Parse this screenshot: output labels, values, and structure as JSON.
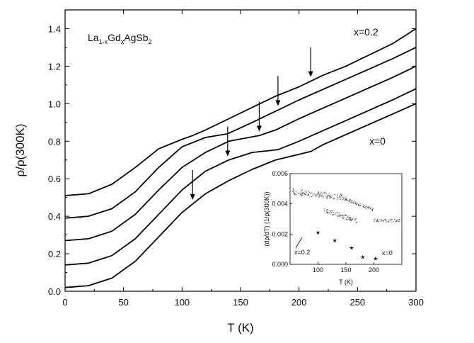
{
  "chart_data": {
    "type": "line",
    "title": "",
    "xlabel": "T (K)",
    "ylabel": "ρ/ρ(300K)",
    "xlim": [
      0,
      300
    ],
    "ylim": [
      0,
      1.5
    ],
    "xticks": [
      "0",
      "50",
      "100",
      "150",
      "200",
      "250",
      "300"
    ],
    "yticks": [
      "0.0",
      "0.2",
      "0.4",
      "0.6",
      "0.8",
      "1.0",
      "1.2",
      "1.4"
    ],
    "compound": {
      "p1": "La",
      "s1": "1-x",
      "p2": "Gd",
      "s2": "x",
      "p3": "AgSb",
      "s3": "2"
    },
    "annotations": {
      "top": "x=0.2",
      "bottom": "x=0"
    },
    "series": [
      {
        "offset": 0.0,
        "Tc": 210,
        "x": [
          0,
          20,
          40,
          60,
          80,
          100,
          120,
          140,
          160,
          180,
          200,
          210,
          220,
          240,
          260,
          280,
          300
        ],
        "y": [
          0.02,
          0.03,
          0.07,
          0.16,
          0.29,
          0.42,
          0.52,
          0.59,
          0.65,
          0.7,
          0.73,
          0.745,
          0.78,
          0.835,
          0.89,
          0.945,
          1.0
        ]
      },
      {
        "offset": 0.12,
        "Tc": 182,
        "x": [
          0,
          20,
          40,
          60,
          80,
          100,
          120,
          140,
          160,
          182,
          200,
          220,
          240,
          260,
          280,
          300
        ],
        "y": [
          0.14,
          0.15,
          0.19,
          0.28,
          0.41,
          0.54,
          0.64,
          0.7,
          0.74,
          0.755,
          0.8,
          0.855,
          0.91,
          0.965,
          1.02,
          1.08
        ]
      },
      {
        "offset": 0.25,
        "Tc": 166,
        "x": [
          0,
          20,
          40,
          60,
          80,
          100,
          120,
          140,
          166,
          180,
          200,
          220,
          240,
          260,
          280,
          300
        ],
        "y": [
          0.27,
          0.28,
          0.32,
          0.41,
          0.54,
          0.66,
          0.74,
          0.8,
          0.83,
          0.86,
          0.92,
          0.975,
          1.03,
          1.085,
          1.14,
          1.2
        ]
      },
      {
        "offset": 0.38,
        "Tc": 139,
        "x": [
          0,
          20,
          40,
          60,
          80,
          100,
          120,
          139,
          160,
          180,
          200,
          220,
          240,
          260,
          280,
          300
        ],
        "y": [
          0.39,
          0.4,
          0.44,
          0.53,
          0.66,
          0.77,
          0.82,
          0.84,
          0.9,
          0.96,
          1.02,
          1.075,
          1.13,
          1.185,
          1.24,
          1.3
        ]
      },
      {
        "offset": 0.5,
        "Tc": 109,
        "x": [
          0,
          20,
          40,
          60,
          80,
          100,
          109,
          120,
          140,
          160,
          180,
          200,
          220,
          240,
          260,
          280,
          300
        ],
        "y": [
          0.51,
          0.52,
          0.57,
          0.66,
          0.76,
          0.81,
          0.83,
          0.86,
          0.92,
          0.98,
          1.04,
          1.09,
          1.15,
          1.2,
          1.26,
          1.32,
          1.4
        ]
      }
    ],
    "arrows_T": [
      109,
      139,
      166,
      182,
      210
    ],
    "inset": {
      "xlabel": "T (K)",
      "ylabel": "(dρ/dT) (1/ρ(300K))",
      "xlim": [
        50,
        250
      ],
      "ylim": [
        0,
        0.006
      ],
      "xticks": [
        "100",
        "150",
        "200"
      ],
      "yticks": [
        "0.000",
        "0.002",
        "0.004",
        "0.006"
      ],
      "label_left": "x=0.2",
      "label_right": "x=0",
      "stars": [
        {
          "T": 100,
          "v": 0.0021
        },
        {
          "T": 130,
          "v": 0.0016
        },
        {
          "T": 160,
          "v": 0.0011
        },
        {
          "T": 180,
          "v": 0.0005
        },
        {
          "T": 203,
          "v": 0.0004
        }
      ]
    }
  }
}
